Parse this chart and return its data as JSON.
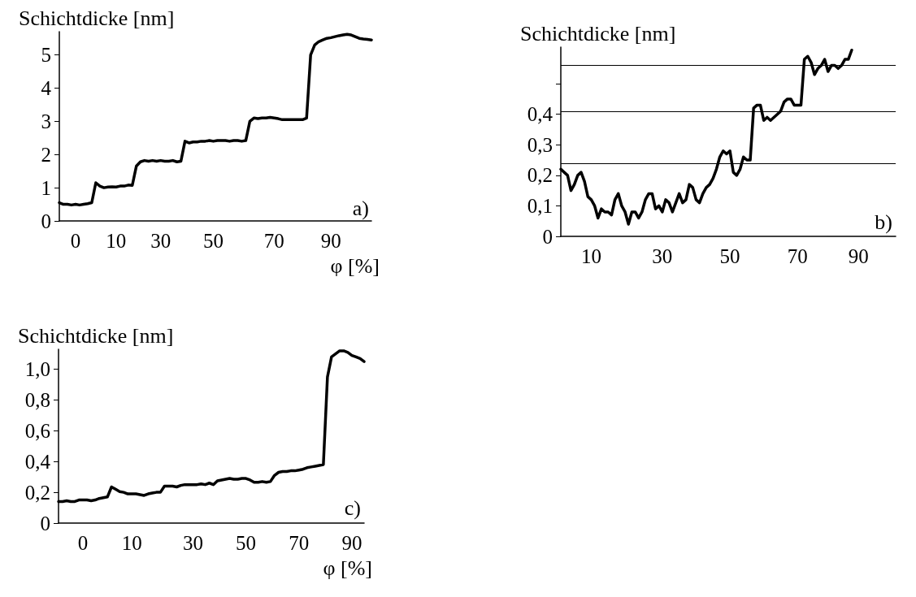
{
  "chart_data": [
    {
      "type": "line",
      "ylabel": "Schichtdicke [nm]",
      "xlabel": "φ [%]",
      "marker": "none",
      "color": "#000000",
      "categories": [
        null,
        null,
        null,
        null,
        "0",
        null,
        null,
        null,
        null,
        null,
        null,
        null,
        null,
        null,
        "10",
        null,
        null,
        null,
        null,
        null,
        null,
        null,
        null,
        null,
        null,
        "30",
        null,
        null,
        null,
        null,
        null,
        null,
        null,
        null,
        null,
        null,
        null,
        null,
        "50",
        null,
        null,
        null,
        null,
        null,
        null,
        null,
        null,
        null,
        null,
        null,
        null,
        null,
        null,
        "70",
        null,
        null,
        null,
        null,
        null,
        null,
        null,
        null,
        null,
        null,
        null,
        null,
        null,
        "90",
        null,
        null,
        null,
        null,
        null,
        null,
        null,
        null,
        null,
        null
      ],
      "values": [
        0.55,
        0.5,
        0.5,
        0.48,
        0.5,
        0.48,
        0.5,
        0.52,
        0.55,
        1.15,
        1.05,
        1.0,
        1.02,
        1.03,
        1.02,
        1.05,
        1.05,
        1.08,
        1.07,
        1.65,
        1.78,
        1.82,
        1.8,
        1.82,
        1.8,
        1.82,
        1.8,
        1.8,
        1.82,
        1.78,
        1.8,
        2.4,
        2.35,
        2.38,
        2.38,
        2.4,
        2.4,
        2.42,
        2.4,
        2.42,
        2.42,
        2.42,
        2.4,
        2.42,
        2.42,
        2.4,
        2.42,
        3.0,
        3.1,
        3.08,
        3.1,
        3.1,
        3.12,
        3.1,
        3.08,
        3.05,
        3.05,
        3.05,
        3.05,
        3.05,
        3.05,
        3.1,
        5.0,
        5.3,
        5.4,
        5.45,
        5.5,
        5.52,
        5.55,
        5.58,
        5.6,
        5.62,
        5.6,
        5.55,
        5.5,
        5.48,
        5.47,
        5.45
      ],
      "ylim": [
        0,
        5.7
      ],
      "yticks": [
        0,
        1,
        2,
        3,
        4,
        5
      ],
      "annotations": [
        "a)"
      ]
    },
    {
      "type": "line",
      "ylabel": "Schichtdicke [nm]",
      "marker": "none",
      "color": "#000000",
      "categories": [
        null,
        null,
        null,
        null,
        null,
        null,
        null,
        null,
        null,
        "10",
        null,
        null,
        null,
        null,
        null,
        null,
        null,
        null,
        null,
        null,
        null,
        null,
        null,
        null,
        null,
        null,
        null,
        null,
        null,
        null,
        "30",
        null,
        null,
        null,
        null,
        null,
        null,
        null,
        null,
        null,
        null,
        null,
        null,
        null,
        null,
        null,
        null,
        null,
        null,
        null,
        "50",
        null,
        null,
        null,
        null,
        null,
        null,
        null,
        null,
        null,
        null,
        null,
        null,
        null,
        null,
        null,
        null,
        null,
        null,
        null,
        "70",
        null,
        null,
        null,
        null,
        null,
        null,
        null,
        null,
        null,
        null,
        null,
        null,
        null,
        null,
        null,
        null,
        null,
        "90",
        null,
        null,
        null,
        null,
        null,
        null,
        null,
        null,
        null,
        null,
        null
      ],
      "values": [
        0.22,
        0.21,
        0.2,
        0.15,
        0.17,
        0.2,
        0.21,
        0.18,
        0.13,
        0.12,
        0.1,
        0.06,
        0.09,
        0.08,
        0.08,
        0.07,
        0.12,
        0.14,
        0.1,
        0.08,
        0.04,
        0.08,
        0.08,
        0.06,
        0.08,
        0.12,
        0.14,
        0.14,
        0.09,
        0.1,
        0.08,
        0.12,
        0.11,
        0.08,
        0.11,
        0.14,
        0.11,
        0.12,
        0.17,
        0.16,
        0.12,
        0.11,
        0.14,
        0.16,
        0.17,
        0.19,
        0.22,
        0.26,
        0.28,
        0.27,
        0.28,
        0.21,
        0.2,
        0.22,
        0.26,
        0.25,
        0.25,
        0.42,
        0.43,
        0.43,
        0.38,
        0.39,
        0.38,
        0.39,
        0.4,
        0.41,
        0.44,
        0.45,
        0.45,
        0.43,
        0.43,
        0.43,
        0.58,
        0.59,
        0.57,
        0.53,
        0.55,
        0.56,
        0.58,
        0.54,
        0.56,
        0.56,
        0.55,
        0.56,
        0.58,
        0.58,
        0.61,
        null,
        null,
        null,
        null,
        null,
        null,
        null,
        null,
        null,
        null,
        null,
        null,
        null
      ],
      "ylim": [
        0,
        0.62
      ],
      "yticks": [
        0,
        {
          "value": 0.1,
          "label": "0,1"
        },
        {
          "value": 0.2,
          "label": "0,2"
        },
        {
          "value": 0.3,
          "label": "0,3"
        },
        {
          "value": 0.4,
          "label": "0,4"
        },
        {
          "value": 0.5,
          "label": null
        }
      ],
      "ref_lines": [
        {
          "axis": "y",
          "value": 0.24,
          "color": "#000000"
        },
        {
          "axis": "y",
          "value": 0.41,
          "color": "#000000"
        },
        {
          "axis": "y",
          "value": 0.56,
          "color": "#000000"
        }
      ],
      "annotations": [
        "b)"
      ]
    },
    {
      "type": "line",
      "ylabel": "Schichtdicke [nm]",
      "xlabel": "φ [%]",
      "marker": "none",
      "color": "#000000",
      "categories": [
        null,
        null,
        null,
        null,
        null,
        null,
        "0",
        null,
        null,
        null,
        null,
        null,
        null,
        null,
        null,
        null,
        null,
        null,
        "10",
        null,
        null,
        null,
        null,
        null,
        null,
        null,
        null,
        null,
        null,
        null,
        null,
        null,
        null,
        "30",
        null,
        null,
        null,
        null,
        null,
        null,
        null,
        null,
        null,
        null,
        null,
        null,
        "50",
        null,
        null,
        null,
        null,
        null,
        null,
        null,
        null,
        null,
        null,
        null,
        null,
        "70",
        null,
        null,
        null,
        null,
        null,
        null,
        null,
        null,
        null,
        null,
        null,
        null,
        "90",
        null,
        null,
        null
      ],
      "values": [
        0.14,
        0.14,
        0.145,
        0.14,
        0.14,
        0.15,
        0.15,
        0.15,
        0.145,
        0.15,
        0.16,
        0.165,
        0.17,
        0.235,
        0.22,
        0.205,
        0.2,
        0.19,
        0.19,
        0.19,
        0.185,
        0.18,
        0.19,
        0.195,
        0.2,
        0.2,
        0.24,
        0.24,
        0.24,
        0.235,
        0.245,
        0.25,
        0.25,
        0.25,
        0.25,
        0.255,
        0.25,
        0.26,
        0.25,
        0.275,
        0.28,
        0.285,
        0.29,
        0.285,
        0.285,
        0.29,
        0.29,
        0.28,
        0.265,
        0.265,
        0.27,
        0.265,
        0.27,
        0.31,
        0.33,
        0.335,
        0.335,
        0.34,
        0.34,
        0.345,
        0.35,
        0.36,
        0.365,
        0.37,
        0.375,
        0.38,
        0.95,
        1.08,
        1.1,
        1.12,
        1.12,
        1.11,
        1.09,
        1.08,
        1.07,
        1.05
      ],
      "ylim": [
        0,
        1.13
      ],
      "yticks": [
        0,
        {
          "value": 0.2,
          "label": "0,2"
        },
        {
          "value": 0.4,
          "label": "0,4"
        },
        {
          "value": 0.6,
          "label": "0,6"
        },
        {
          "value": 0.8,
          "label": "0,8"
        },
        {
          "value": 1.0,
          "label": "1,0"
        }
      ],
      "annotations": [
        "c)"
      ]
    }
  ]
}
